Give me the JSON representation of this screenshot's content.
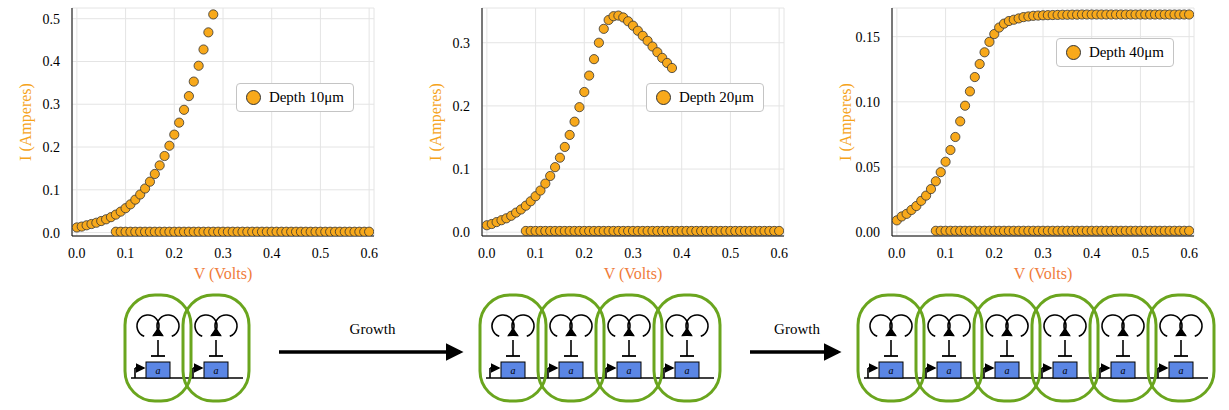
{
  "chart_data": [
    {
      "type": "scatter",
      "xlabel": "V (Volts)",
      "ylabel": "I (Amperes)",
      "grid": true,
      "legend": "right",
      "marker": "circle",
      "xlim": [
        -0.01,
        0.61
      ],
      "xticks": [
        {
          "value": 0,
          "label": "0.0"
        },
        0.1,
        0.2,
        0.3,
        0.4,
        0.5,
        0.6
      ],
      "ylim": [
        -0.008,
        0.525
      ],
      "yticks": [
        {
          "value": 0,
          "label": "0.0"
        },
        0.1,
        0.2,
        0.3,
        0.4,
        0.5
      ],
      "series": [
        {
          "name": "Depth 10μm",
          "color": "#f8a91b",
          "x": [
            0,
            0.01,
            0.02,
            0.03,
            0.04,
            0.05,
            0.06,
            0.07,
            0.08,
            0.09,
            0.1,
            0.11,
            0.12,
            0.13,
            0.14,
            0.15,
            0.16,
            0.17,
            0.18,
            0.19,
            0.2,
            0.21,
            0.22,
            0.23,
            0.24,
            0.25,
            0.26,
            0.27,
            0.28,
            0.08,
            0.09,
            0.1,
            0.11,
            0.12,
            0.13,
            0.14,
            0.15,
            0.16,
            0.17,
            0.18,
            0.19,
            0.2,
            0.21,
            0.22,
            0.23,
            0.24,
            0.25,
            0.26,
            0.27,
            0.28,
            0.29,
            0.3,
            0.31,
            0.32,
            0.33,
            0.34,
            0.35,
            0.36,
            0.37,
            0.38,
            0.39,
            0.4,
            0.41,
            0.42,
            0.43,
            0.44,
            0.45,
            0.46,
            0.47,
            0.48,
            0.49,
            0.5,
            0.51,
            0.52,
            0.53,
            0.54,
            0.55,
            0.56,
            0.57,
            0.58,
            0.59,
            0.6
          ],
          "values": [
            0.012,
            0.014,
            0.017,
            0.02,
            0.023,
            0.027,
            0.031,
            0.036,
            0.042,
            0.049,
            0.057,
            0.066,
            0.077,
            0.089,
            0.103,
            0.119,
            0.137,
            0.157,
            0.179,
            0.203,
            0.229,
            0.257,
            0.287,
            0.319,
            0.353,
            0.39,
            0.428,
            0.468,
            0.51,
            0.002,
            0.002,
            0.002,
            0.002,
            0.002,
            0.002,
            0.002,
            0.002,
            0.002,
            0.002,
            0.002,
            0.002,
            0.002,
            0.002,
            0.002,
            0.002,
            0.002,
            0.002,
            0.002,
            0.002,
            0.002,
            0.002,
            0.002,
            0.002,
            0.002,
            0.002,
            0.002,
            0.002,
            0.002,
            0.002,
            0.002,
            0.002,
            0.002,
            0.002,
            0.002,
            0.002,
            0.002,
            0.002,
            0.002,
            0.002,
            0.002,
            0.002,
            0.002,
            0.002,
            0.002,
            0.002,
            0.002,
            0.002,
            0.002,
            0.002,
            0.002,
            0.002,
            0.002
          ]
        }
      ]
    },
    {
      "type": "scatter",
      "xlabel": "V (Volts)",
      "ylabel": "I (Amperes)",
      "grid": true,
      "legend": "right",
      "marker": "circle",
      "xlim": [
        -0.01,
        0.61
      ],
      "xticks": [
        {
          "value": 0,
          "label": "0.0"
        },
        0.1,
        0.2,
        0.3,
        0.4,
        0.5,
        0.6
      ],
      "ylim": [
        -0.006,
        0.355
      ],
      "yticks": [
        {
          "value": 0,
          "label": "0.0"
        },
        0.1,
        0.2,
        0.3
      ],
      "series": [
        {
          "name": "Depth 20μm",
          "color": "#f8a91b",
          "x": [
            0,
            0.01,
            0.02,
            0.03,
            0.04,
            0.05,
            0.06,
            0.07,
            0.08,
            0.09,
            0.1,
            0.11,
            0.12,
            0.13,
            0.14,
            0.15,
            0.16,
            0.17,
            0.18,
            0.19,
            0.2,
            0.21,
            0.22,
            0.23,
            0.24,
            0.25,
            0.26,
            0.27,
            0.28,
            0.29,
            0.3,
            0.31,
            0.32,
            0.33,
            0.34,
            0.35,
            0.36,
            0.37,
            0.38,
            0.08,
            0.09,
            0.1,
            0.11,
            0.12,
            0.13,
            0.14,
            0.15,
            0.16,
            0.17,
            0.18,
            0.19,
            0.2,
            0.21,
            0.22,
            0.23,
            0.24,
            0.25,
            0.26,
            0.27,
            0.28,
            0.29,
            0.3,
            0.31,
            0.32,
            0.33,
            0.34,
            0.35,
            0.36,
            0.37,
            0.38,
            0.39,
            0.4,
            0.41,
            0.42,
            0.43,
            0.44,
            0.45,
            0.46,
            0.47,
            0.48,
            0.49,
            0.5,
            0.51,
            0.52,
            0.53,
            0.54,
            0.55,
            0.56,
            0.57,
            0.58,
            0.59,
            0.6
          ],
          "values": [
            0.011,
            0.013,
            0.016,
            0.019,
            0.022,
            0.026,
            0.031,
            0.036,
            0.042,
            0.049,
            0.057,
            0.066,
            0.077,
            0.089,
            0.103,
            0.118,
            0.135,
            0.154,
            0.175,
            0.198,
            0.222,
            0.248,
            0.274,
            0.3,
            0.322,
            0.336,
            0.342,
            0.343,
            0.34,
            0.334,
            0.327,
            0.319,
            0.311,
            0.303,
            0.294,
            0.285,
            0.276,
            0.268,
            0.26,
            0.002,
            0.002,
            0.002,
            0.002,
            0.002,
            0.002,
            0.002,
            0.002,
            0.002,
            0.002,
            0.002,
            0.002,
            0.002,
            0.002,
            0.002,
            0.002,
            0.002,
            0.002,
            0.002,
            0.002,
            0.002,
            0.002,
            0.002,
            0.002,
            0.002,
            0.002,
            0.002,
            0.002,
            0.002,
            0.002,
            0.002,
            0.002,
            0.002,
            0.002,
            0.002,
            0.002,
            0.002,
            0.002,
            0.002,
            0.002,
            0.002,
            0.002,
            0.002,
            0.002,
            0.002,
            0.002,
            0.002,
            0.002,
            0.002,
            0.002,
            0.002,
            0.002,
            0.002
          ]
        }
      ]
    },
    {
      "type": "scatter",
      "xlabel": "V (Volts)",
      "ylabel": "I (Amperes)",
      "grid": true,
      "legend": "upper right",
      "marker": "circle",
      "xlim": [
        -0.01,
        0.61
      ],
      "xticks": [
        {
          "value": 0,
          "label": "0.0"
        },
        0.1,
        0.2,
        0.3,
        0.4,
        0.5,
        0.6
      ],
      "ylim": [
        -0.003,
        0.172
      ],
      "yticks": [
        {
          "value": 0,
          "label": "0.00"
        },
        0.05,
        {
          "value": 0.1,
          "label": "0.10"
        },
        0.15
      ],
      "series": [
        {
          "name": "Depth 40μm",
          "color": "#f8a91b",
          "x": [
            0,
            0.01,
            0.02,
            0.03,
            0.04,
            0.05,
            0.06,
            0.07,
            0.08,
            0.09,
            0.1,
            0.11,
            0.12,
            0.13,
            0.14,
            0.15,
            0.16,
            0.17,
            0.18,
            0.19,
            0.2,
            0.21,
            0.22,
            0.23,
            0.24,
            0.25,
            0.26,
            0.27,
            0.28,
            0.29,
            0.3,
            0.31,
            0.32,
            0.33,
            0.34,
            0.35,
            0.36,
            0.37,
            0.38,
            0.39,
            0.4,
            0.41,
            0.42,
            0.43,
            0.44,
            0.45,
            0.46,
            0.47,
            0.48,
            0.49,
            0.5,
            0.51,
            0.52,
            0.53,
            0.54,
            0.55,
            0.56,
            0.57,
            0.58,
            0.59,
            0.6,
            0.08,
            0.09,
            0.1,
            0.11,
            0.12,
            0.13,
            0.14,
            0.15,
            0.16,
            0.17,
            0.18,
            0.19,
            0.2,
            0.21,
            0.22,
            0.23,
            0.24,
            0.25,
            0.26,
            0.27,
            0.28,
            0.29,
            0.3,
            0.31,
            0.32,
            0.33,
            0.34,
            0.35,
            0.36,
            0.37,
            0.38,
            0.39,
            0.4,
            0.41,
            0.42,
            0.43,
            0.44,
            0.45,
            0.46,
            0.47,
            0.48,
            0.49,
            0.5,
            0.51,
            0.52,
            0.53,
            0.54,
            0.55,
            0.56,
            0.57,
            0.58,
            0.59,
            0.6
          ],
          "values": [
            0.009,
            0.012,
            0.014,
            0.017,
            0.02,
            0.024,
            0.028,
            0.033,
            0.039,
            0.046,
            0.054,
            0.063,
            0.073,
            0.085,
            0.097,
            0.108,
            0.119,
            0.129,
            0.138,
            0.146,
            0.152,
            0.157,
            0.16,
            0.162,
            0.163,
            0.164,
            0.165,
            0.1655,
            0.166,
            0.1662,
            0.1664,
            0.1665,
            0.1666,
            0.1667,
            0.1668,
            0.1668,
            0.1669,
            0.1669,
            0.167,
            0.167,
            0.167,
            0.167,
            0.167,
            0.167,
            0.167,
            0.167,
            0.167,
            0.167,
            0.167,
            0.167,
            0.167,
            0.167,
            0.167,
            0.167,
            0.167,
            0.167,
            0.167,
            0.167,
            0.167,
            0.167,
            0.167,
            0.001,
            0.001,
            0.001,
            0.001,
            0.001,
            0.001,
            0.001,
            0.001,
            0.001,
            0.001,
            0.001,
            0.001,
            0.001,
            0.001,
            0.001,
            0.001,
            0.001,
            0.001,
            0.001,
            0.001,
            0.001,
            0.001,
            0.001,
            0.001,
            0.001,
            0.001,
            0.001,
            0.001,
            0.001,
            0.001,
            0.001,
            0.001,
            0.001,
            0.001,
            0.001,
            0.001,
            0.001,
            0.001,
            0.001,
            0.001,
            0.001,
            0.001,
            0.001,
            0.001,
            0.001,
            0.001,
            0.001,
            0.001,
            0.001,
            0.001,
            0.001,
            0.001,
            0.001
          ]
        }
      ]
    }
  ],
  "diagram": {
    "stages": [
      {
        "cells": 2
      },
      {
        "cells": 4
      },
      {
        "cells": 6
      }
    ],
    "gene_label": "a",
    "arrow_label": "Growth"
  }
}
